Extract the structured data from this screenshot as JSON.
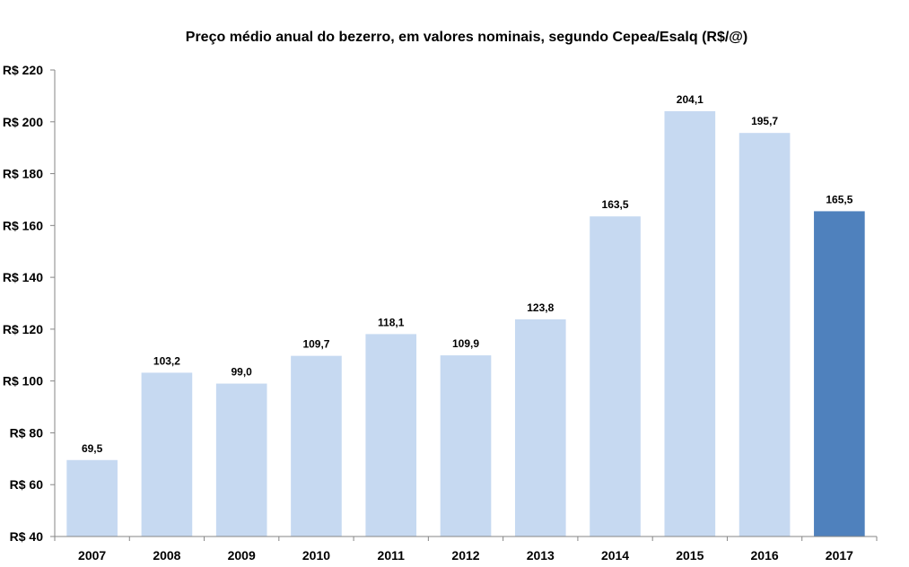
{
  "chart_data": {
    "type": "bar",
    "title": "Preço médio anual do bezerro, em valores nominais, segundo Cepea/Esalq (R$/@)",
    "categories": [
      "2007",
      "2008",
      "2009",
      "2010",
      "2011",
      "2012",
      "2013",
      "2014",
      "2015",
      "2016",
      "2017"
    ],
    "values": [
      69.5,
      103.2,
      99.0,
      109.7,
      118.1,
      109.9,
      123.8,
      163.5,
      204.1,
      195.7,
      165.5
    ],
    "data_labels": [
      "69,5",
      "103,2",
      "99,0",
      "109,7",
      "118,1",
      "109,9",
      "123,8",
      "163,5",
      "204,1",
      "195,7",
      "165,5"
    ],
    "ylim": [
      40,
      220
    ],
    "yticks": [
      40,
      60,
      80,
      100,
      120,
      140,
      160,
      180,
      200,
      220
    ],
    "ytick_labels": [
      "R$ 40",
      "R$ 60",
      "R$ 80",
      "R$ 100",
      "R$ 120",
      "R$ 140",
      "R$ 160",
      "R$ 180",
      "R$ 200",
      "R$ 220"
    ],
    "xlabel": "",
    "ylabel": "",
    "grid": false,
    "legend": "none",
    "colors": {
      "default_bar": "#c6d9f1",
      "highlight_bar": "#4f81bd",
      "axis": "#868686"
    },
    "highlight_categories": [
      "2017"
    ]
  }
}
